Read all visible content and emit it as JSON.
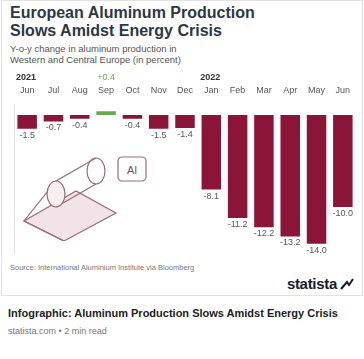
{
  "chart_data": {
    "type": "bar",
    "title": "European Aluminum Production Slows Amidst Energy Crisis",
    "subtitle": "Y-o-y change in aluminum production in Western and Central Europe (in percent)",
    "categories": [
      "Jun",
      "Jul",
      "Aug",
      "Sep",
      "Oct",
      "Nov",
      "Dec",
      "Jan",
      "Feb",
      "Mar",
      "Apr",
      "May",
      "Jun"
    ],
    "values": [
      -1.5,
      -0.7,
      -0.4,
      0.4,
      -0.4,
      -1.5,
      -1.4,
      -8.1,
      -11.2,
      -12.2,
      -13.2,
      -14.0,
      -10.0
    ],
    "value_labels": [
      "-1.5",
      "-0.7",
      "-0.4",
      "+0.4",
      "-0.4",
      "-1.5",
      "-1.4",
      "-8.1",
      "-11.2",
      "-12.2",
      "-13.2",
      "-14.0",
      "-10.0"
    ],
    "colors": [
      "#8a1538",
      "#8a1538",
      "#8a1538",
      "#6aa84f",
      "#8a1538",
      "#8a1538",
      "#8a1538",
      "#8a1538",
      "#8a1538",
      "#8a1538",
      "#8a1538",
      "#8a1538",
      "#8a1538"
    ],
    "annotations": [
      {
        "text": "2021",
        "at": 0
      },
      {
        "text": "2022",
        "at": 7
      }
    ],
    "ylim": [
      -15,
      1
    ],
    "grid": false,
    "data_labels": true,
    "tick_labels": "x"
  },
  "icon_label": "Al",
  "source": "Source: International Aluminium Institute via Bloomberg",
  "brand": "statista",
  "caption": {
    "title": "Infographic: Aluminum Production Slows Amidst Energy Crisis",
    "meta": "statista.com • 2 min read"
  }
}
